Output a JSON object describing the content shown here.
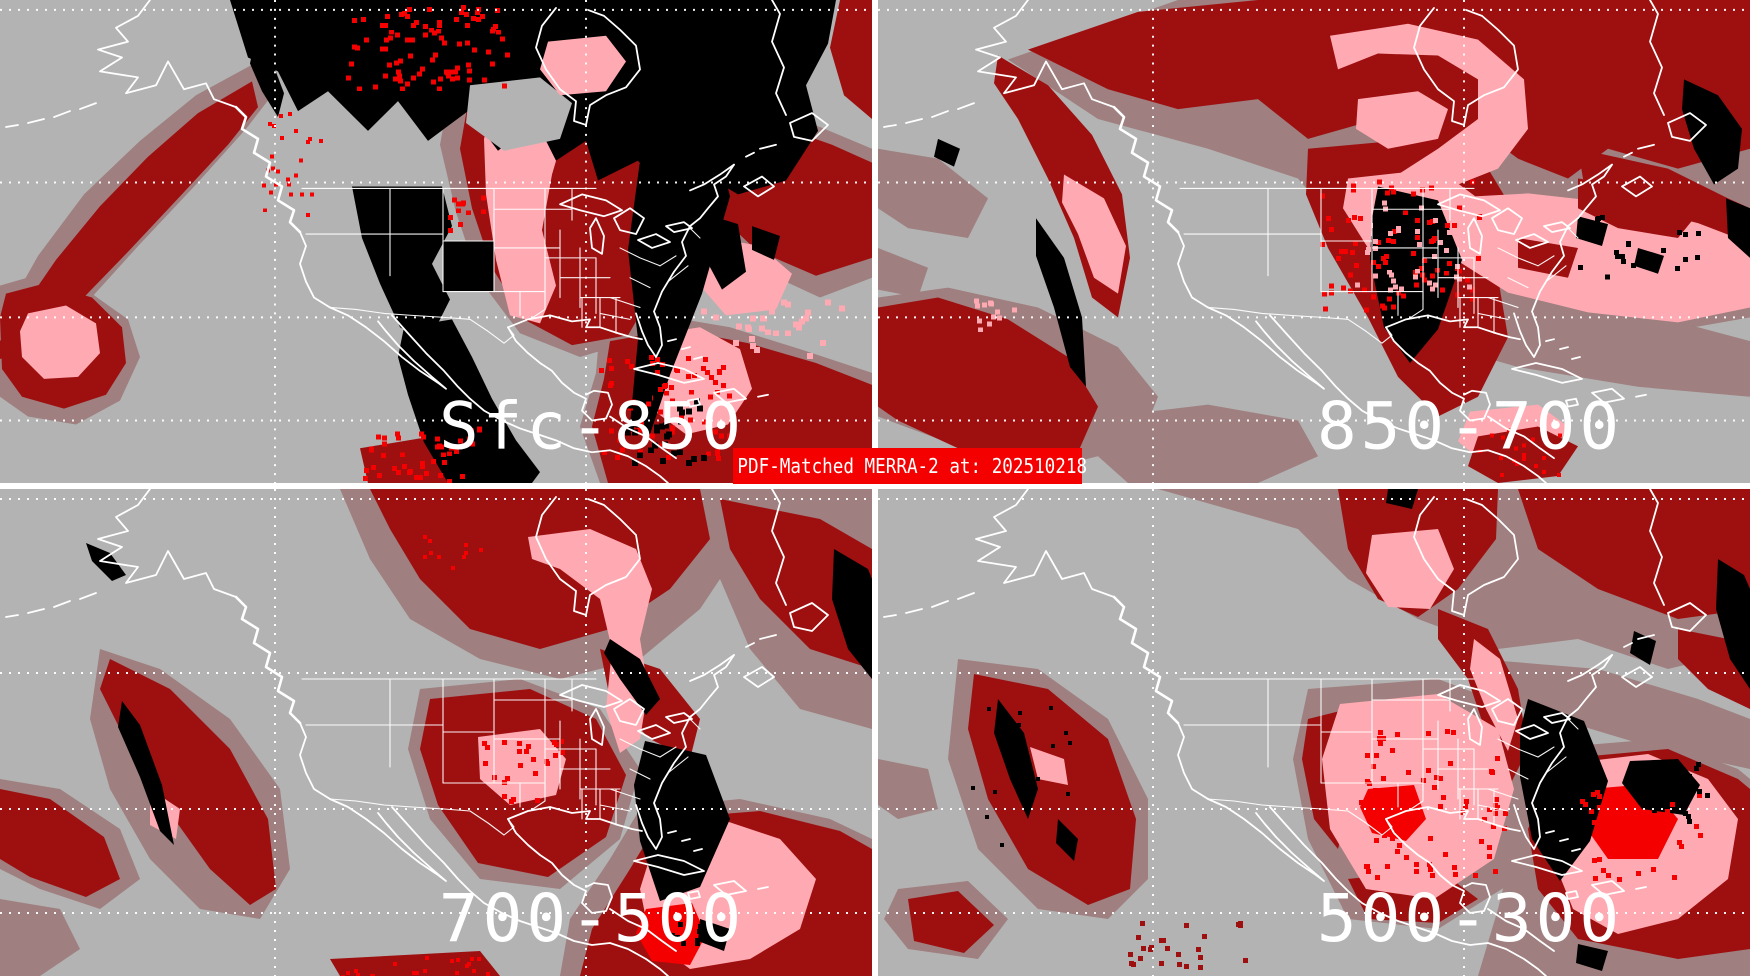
{
  "banner": {
    "label": "PDF-Matched MERRA-2 at: 202510218"
  },
  "panels": [
    {
      "label": "Sfc-850"
    },
    {
      "label": "850-700"
    },
    {
      "label": "700-500"
    },
    {
      "label": "500-300"
    }
  ],
  "colors": {
    "background_gray": "#b3b3b3",
    "low_shade_rosybrown": "#9f7f7f",
    "dark_red": "#9e0f10",
    "pink": "#ffaab2",
    "bright_red": "#f40000",
    "missing_data_black": "#000000",
    "map_line_white": "#ffffff",
    "banner_background": "#f40000",
    "banner_text": "#ffffff",
    "label_text": "#ffffff"
  }
}
